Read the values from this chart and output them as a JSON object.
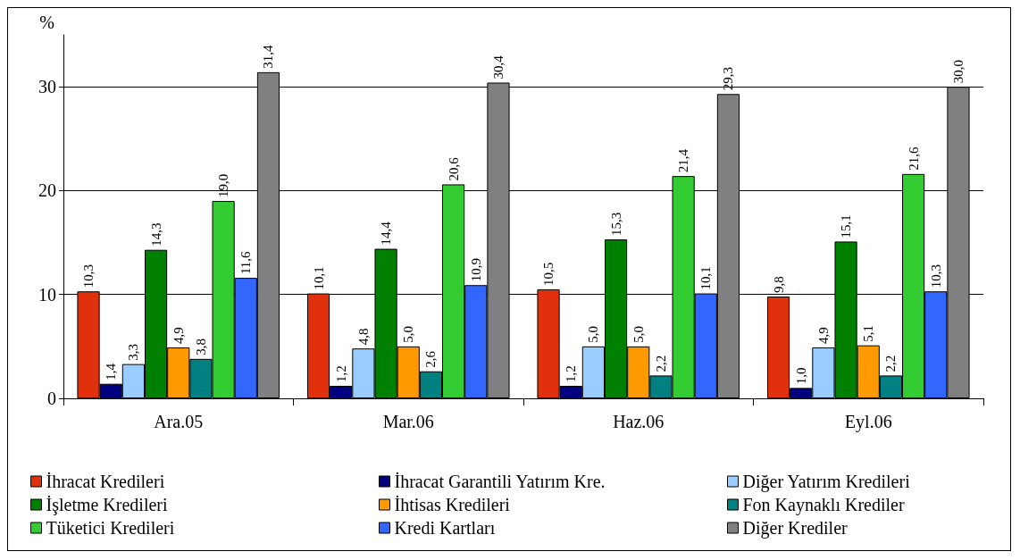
{
  "chart_data": {
    "type": "bar",
    "ylabel": "%",
    "categories": [
      "Ara.05",
      "Mar.06",
      "Haz.06",
      "Eyl.06"
    ],
    "ylim": [
      0,
      35
    ],
    "yticks": [
      0,
      10,
      20,
      30
    ],
    "grid": "y",
    "legend": "bottom",
    "series": [
      {
        "name": "İhracat Kredileri",
        "color": "#e0300c",
        "values": [
          10.3,
          10.1,
          10.5,
          9.8
        ],
        "value_labels": [
          "10,3",
          "10,1",
          "10,5",
          "9,8"
        ]
      },
      {
        "name": "İhracat Garantili Yatırım Kre.",
        "color": "#000080",
        "values": [
          1.4,
          1.2,
          1.2,
          1.0
        ],
        "value_labels": [
          "1,4",
          "1,2",
          "1,2",
          "1,0"
        ]
      },
      {
        "name": "Diğer Yatırım Kredileri",
        "color": "#99ccff",
        "values": [
          3.3,
          4.8,
          5.0,
          4.9
        ],
        "value_labels": [
          "3,3",
          "4,8",
          "5,0",
          "4,9"
        ]
      },
      {
        "name": "İşletme Kredileri",
        "color": "#008000",
        "values": [
          14.3,
          14.4,
          15.3,
          15.1
        ],
        "value_labels": [
          "14,3",
          "14,4",
          "15,3",
          "15,1"
        ]
      },
      {
        "name": "İhtisas Kredileri",
        "color": "#ff9900",
        "values": [
          4.9,
          5.0,
          5.0,
          5.1
        ],
        "value_labels": [
          "4,9",
          "5,0",
          "5,0",
          "5,1"
        ]
      },
      {
        "name": "Fon Kaynaklı Krediler",
        "color": "#008080",
        "values": [
          3.8,
          2.6,
          2.2,
          2.2
        ],
        "value_labels": [
          "3,8",
          "2,6",
          "2,2",
          "2,2"
        ]
      },
      {
        "name": "Tüketici Kredileri",
        "color": "#33cc33",
        "values": [
          19.0,
          20.6,
          21.4,
          21.6
        ],
        "value_labels": [
          "19,0",
          "20,6",
          "21,4",
          "21,6"
        ]
      },
      {
        "name": "Kredi Kartları",
        "color": "#3366ff",
        "values": [
          11.6,
          10.9,
          10.1,
          10.3
        ],
        "value_labels": [
          "11,6",
          "10,9",
          "10,1",
          "10,3"
        ]
      },
      {
        "name": "Diğer Krediler",
        "color": "#808080",
        "values": [
          31.4,
          30.4,
          29.3,
          30.0
        ],
        "value_labels": [
          "31,4",
          "30,4",
          "29,3",
          "30,0"
        ]
      }
    ]
  }
}
